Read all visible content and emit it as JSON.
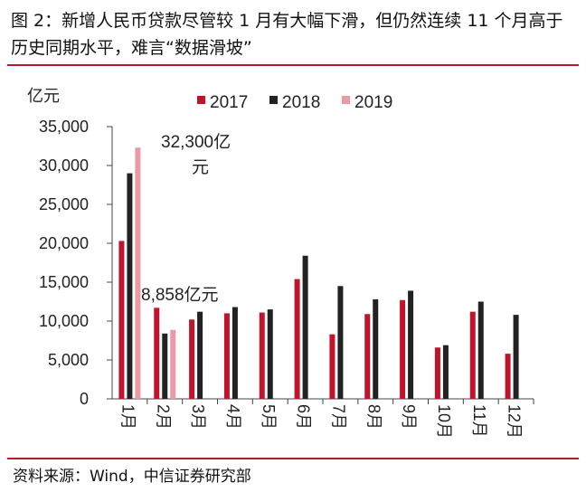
{
  "title": "图 2：新增人民币贷款尽管较 1 月有大幅下滑，但仍然连续 11 个月高于历史同期水平，难言“数据滑坡”",
  "source": "资料来源：Wind，中信证券研究部",
  "chart_data": {
    "type": "bar",
    "ylabel": "亿元",
    "ylim": [
      0,
      35000
    ],
    "yticks": [
      0,
      5000,
      10000,
      15000,
      20000,
      25000,
      30000,
      35000
    ],
    "ytick_labels": [
      "0",
      "5,000",
      "10,000",
      "15,000",
      "20,000",
      "25,000",
      "30,000",
      "35,000"
    ],
    "categories": [
      "1月",
      "2月",
      "3月",
      "4月",
      "5月",
      "6月",
      "7月",
      "8月",
      "9月",
      "10月",
      "11月",
      "12月"
    ],
    "series": [
      {
        "name": "2017",
        "color": "#c0142c",
        "values": [
          20300,
          11700,
          10200,
          11000,
          11100,
          15400,
          8300,
          10900,
          12700,
          6600,
          11200,
          5800
        ]
      },
      {
        "name": "2018",
        "color": "#222222",
        "values": [
          29000,
          8400,
          11200,
          11800,
          11500,
          18400,
          14500,
          12800,
          13900,
          6900,
          12500,
          10800
        ]
      },
      {
        "name": "2019",
        "color": "#e99aa3",
        "values": [
          32300,
          8858,
          null,
          null,
          null,
          null,
          null,
          null,
          null,
          null,
          null,
          null
        ]
      }
    ],
    "annotations": [
      {
        "text": "32,300亿元"
      },
      {
        "text": "8,858亿元"
      }
    ],
    "legend": "top",
    "grid": false
  }
}
